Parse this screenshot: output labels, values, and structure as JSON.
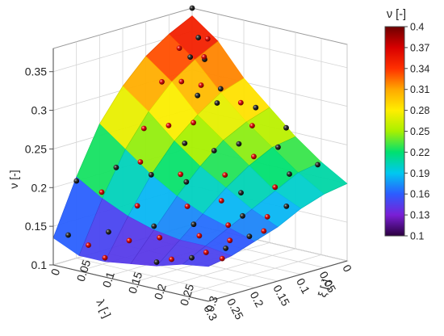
{
  "chart_data": {
    "type": "3d-surface-scatter",
    "z_axis": {
      "label": "ν [-]",
      "ticks": [
        "0.1",
        "0.15",
        "0.2",
        "0.25",
        "0.3",
        "0.35"
      ],
      "range": [
        0.1,
        0.38
      ]
    },
    "x_axis": {
      "label": "λ [-]",
      "ticks": [
        "0",
        "0.05",
        "0.1",
        "0.15",
        "0.2",
        "0.25",
        "0.3"
      ],
      "range": [
        0,
        0.3
      ]
    },
    "y_axis": {
      "label": "ξ [-]",
      "ticks": [
        "0",
        "0.05",
        "0.1",
        "0.15",
        "0.2",
        "0.25",
        "0.3"
      ],
      "range": [
        0,
        0.3
      ]
    },
    "colorbar": {
      "title": "ν [-]",
      "ticks": [
        "0.4",
        "0.37",
        "0.34",
        "0.31",
        "0.28",
        "0.25",
        "0.22",
        "0.19",
        "0.16",
        "0.13",
        "0.1"
      ],
      "range": [
        0.1,
        0.4
      ],
      "colors": [
        "#2b0040",
        "#7a1fd6",
        "#2c5cff",
        "#00c8f0",
        "#00e070",
        "#a8f000",
        "#ffee00",
        "#ffa800",
        "#ff3000",
        "#d80000",
        "#6e0000"
      ]
    },
    "surface_rows": [
      [
        {
          "x": 0.0,
          "y": 0.0,
          "z": 0.37
        },
        {
          "x": 0.05,
          "y": 0.0,
          "z": 0.355
        },
        {
          "x": 0.1,
          "y": 0.0,
          "z": 0.335
        },
        {
          "x": 0.15,
          "y": 0.0,
          "z": 0.305
        },
        {
          "x": 0.2,
          "y": 0.0,
          "z": 0.265
        },
        {
          "x": 0.25,
          "y": 0.0,
          "z": 0.205
        },
        {
          "x": 0.3,
          "y": 0.0,
          "z": 0.135
        }
      ],
      [
        {
          "x": 0.0,
          "y": 0.05,
          "z": 0.345
        },
        {
          "x": 0.05,
          "y": 0.05,
          "z": 0.33
        },
        {
          "x": 0.1,
          "y": 0.05,
          "z": 0.31
        },
        {
          "x": 0.15,
          "y": 0.05,
          "z": 0.28
        },
        {
          "x": 0.2,
          "y": 0.05,
          "z": 0.24
        },
        {
          "x": 0.25,
          "y": 0.05,
          "z": 0.185
        },
        {
          "x": 0.3,
          "y": 0.05,
          "z": 0.12
        }
      ],
      [
        {
          "x": 0.0,
          "y": 0.1,
          "z": 0.305
        },
        {
          "x": 0.05,
          "y": 0.1,
          "z": 0.295
        },
        {
          "x": 0.1,
          "y": 0.1,
          "z": 0.275
        },
        {
          "x": 0.15,
          "y": 0.1,
          "z": 0.25
        },
        {
          "x": 0.2,
          "y": 0.1,
          "z": 0.215
        },
        {
          "x": 0.25,
          "y": 0.1,
          "z": 0.17
        },
        {
          "x": 0.3,
          "y": 0.1,
          "z": 0.12
        }
      ],
      [
        {
          "x": 0.0,
          "y": 0.15,
          "z": 0.275
        },
        {
          "x": 0.05,
          "y": 0.15,
          "z": 0.265
        },
        {
          "x": 0.1,
          "y": 0.15,
          "z": 0.25
        },
        {
          "x": 0.15,
          "y": 0.15,
          "z": 0.225
        },
        {
          "x": 0.2,
          "y": 0.15,
          "z": 0.195
        },
        {
          "x": 0.25,
          "y": 0.15,
          "z": 0.16
        },
        {
          "x": 0.3,
          "y": 0.15,
          "z": 0.125
        }
      ],
      [
        {
          "x": 0.0,
          "y": 0.2,
          "z": 0.245
        },
        {
          "x": 0.05,
          "y": 0.2,
          "z": 0.24
        },
        {
          "x": 0.1,
          "y": 0.2,
          "z": 0.225
        },
        {
          "x": 0.15,
          "y": 0.2,
          "z": 0.205
        },
        {
          "x": 0.2,
          "y": 0.2,
          "z": 0.18
        },
        {
          "x": 0.25,
          "y": 0.2,
          "z": 0.155
        },
        {
          "x": 0.3,
          "y": 0.2,
          "z": 0.13
        }
      ],
      [
        {
          "x": 0.0,
          "y": 0.25,
          "z": 0.22
        },
        {
          "x": 0.05,
          "y": 0.25,
          "z": 0.215
        },
        {
          "x": 0.1,
          "y": 0.25,
          "z": 0.2
        },
        {
          "x": 0.15,
          "y": 0.25,
          "z": 0.185
        },
        {
          "x": 0.2,
          "y": 0.25,
          "z": 0.17
        },
        {
          "x": 0.25,
          "y": 0.25,
          "z": 0.155
        },
        {
          "x": 0.3,
          "y": 0.25,
          "z": 0.14
        }
      ],
      [
        {
          "x": 0.0,
          "y": 0.3,
          "z": 0.2
        },
        {
          "x": 0.05,
          "y": 0.3,
          "z": 0.195
        },
        {
          "x": 0.1,
          "y": 0.3,
          "z": 0.185
        },
        {
          "x": 0.15,
          "y": 0.3,
          "z": 0.17
        },
        {
          "x": 0.2,
          "y": 0.3,
          "z": 0.16
        },
        {
          "x": 0.25,
          "y": 0.3,
          "z": 0.15
        },
        {
          "x": 0.3,
          "y": 0.3,
          "z": 0.145
        }
      ]
    ],
    "series": [
      {
        "marker": "black",
        "points": [
          {
            "x": 0.0,
            "y": 0.0,
            "z": 0.38
          },
          {
            "x": 0.02,
            "y": 0.03,
            "z": 0.35
          },
          {
            "x": 0.04,
            "y": 0.06,
            "z": 0.33
          },
          {
            "x": 0.06,
            "y": 0.05,
            "z": 0.335
          },
          {
            "x": 0.05,
            "y": 0.1,
            "z": 0.3
          },
          {
            "x": 0.03,
            "y": 0.15,
            "z": 0.28
          },
          {
            "x": 0.08,
            "y": 0.12,
            "z": 0.29
          },
          {
            "x": 0.1,
            "y": 0.1,
            "z": 0.3
          },
          {
            "x": 0.02,
            "y": 0.2,
            "z": 0.26
          },
          {
            "x": 0.06,
            "y": 0.22,
            "z": 0.245
          },
          {
            "x": 0.1,
            "y": 0.18,
            "z": 0.25
          },
          {
            "x": 0.12,
            "y": 0.15,
            "z": 0.24
          },
          {
            "x": 0.15,
            "y": 0.12,
            "z": 0.25
          },
          {
            "x": 0.03,
            "y": 0.27,
            "z": 0.225
          },
          {
            "x": 0.08,
            "y": 0.26,
            "z": 0.22
          },
          {
            "x": 0.14,
            "y": 0.22,
            "z": 0.2
          },
          {
            "x": 0.18,
            "y": 0.15,
            "z": 0.21
          },
          {
            "x": 0.2,
            "y": 0.1,
            "z": 0.215
          },
          {
            "x": 0.22,
            "y": 0.05,
            "z": 0.22
          },
          {
            "x": 0.25,
            "y": 0.0,
            "z": 0.2
          },
          {
            "x": 0.17,
            "y": 0.25,
            "z": 0.18
          },
          {
            "x": 0.22,
            "y": 0.2,
            "z": 0.17
          },
          {
            "x": 0.25,
            "y": 0.15,
            "z": 0.165
          },
          {
            "x": 0.27,
            "y": 0.08,
            "z": 0.15
          },
          {
            "x": 0.29,
            "y": 0.02,
            "z": 0.14
          },
          {
            "x": 0.28,
            "y": 0.25,
            "z": 0.145
          },
          {
            "x": 0.3,
            "y": 0.2,
            "z": 0.135
          },
          {
            "x": 0.12,
            "y": 0.29,
            "z": 0.19
          },
          {
            "x": 0.2,
            "y": 0.29,
            "z": 0.165
          },
          {
            "x": 0.24,
            "y": 0.28,
            "z": 0.155
          }
        ]
      },
      {
        "marker": "red",
        "points": [
          {
            "x": 0.0,
            "y": 0.03,
            "z": 0.345
          },
          {
            "x": 0.03,
            "y": 0.05,
            "z": 0.33
          },
          {
            "x": 0.05,
            "y": 0.02,
            "z": 0.34
          },
          {
            "x": 0.07,
            "y": 0.08,
            "z": 0.305
          },
          {
            "x": 0.04,
            "y": 0.13,
            "z": 0.285
          },
          {
            "x": 0.09,
            "y": 0.06,
            "z": 0.31
          },
          {
            "x": 0.11,
            "y": 0.04,
            "z": 0.31
          },
          {
            "x": 0.06,
            "y": 0.17,
            "z": 0.265
          },
          {
            "x": 0.12,
            "y": 0.11,
            "z": 0.27
          },
          {
            "x": 0.09,
            "y": 0.2,
            "z": 0.235
          },
          {
            "x": 0.14,
            "y": 0.08,
            "z": 0.265
          },
          {
            "x": 0.16,
            "y": 0.05,
            "z": 0.26
          },
          {
            "x": 0.13,
            "y": 0.18,
            "z": 0.215
          },
          {
            "x": 0.17,
            "y": 0.13,
            "z": 0.215
          },
          {
            "x": 0.19,
            "y": 0.07,
            "z": 0.225
          },
          {
            "x": 0.1,
            "y": 0.25,
            "z": 0.205
          },
          {
            "x": 0.16,
            "y": 0.2,
            "z": 0.19
          },
          {
            "x": 0.2,
            "y": 0.17,
            "z": 0.185
          },
          {
            "x": 0.23,
            "y": 0.1,
            "z": 0.18
          },
          {
            "x": 0.24,
            "y": 0.04,
            "z": 0.19
          },
          {
            "x": 0.19,
            "y": 0.24,
            "z": 0.17
          },
          {
            "x": 0.23,
            "y": 0.22,
            "z": 0.16
          },
          {
            "x": 0.26,
            "y": 0.17,
            "z": 0.155
          },
          {
            "x": 0.27,
            "y": 0.12,
            "z": 0.145
          },
          {
            "x": 0.28,
            "y": 0.05,
            "z": 0.13
          },
          {
            "x": 0.15,
            "y": 0.28,
            "z": 0.18
          },
          {
            "x": 0.22,
            "y": 0.27,
            "z": 0.16
          },
          {
            "x": 0.26,
            "y": 0.26,
            "z": 0.15
          },
          {
            "x": 0.29,
            "y": 0.22,
            "z": 0.14
          },
          {
            "x": 0.3,
            "y": 0.1,
            "z": 0.125
          },
          {
            "x": 0.18,
            "y": 0.3,
            "z": 0.17
          },
          {
            "x": 0.27,
            "y": 0.3,
            "z": 0.15
          }
        ]
      }
    ]
  }
}
